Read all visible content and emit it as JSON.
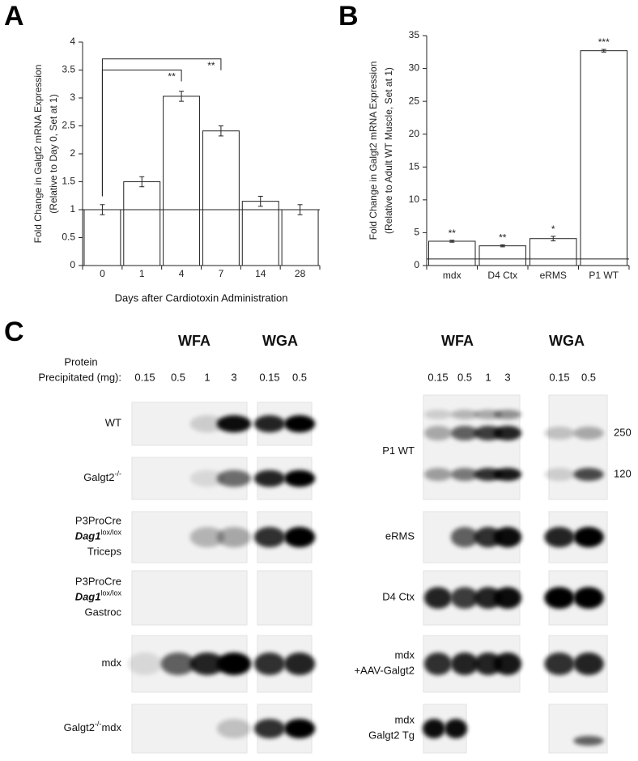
{
  "chart_data": [
    {
      "type": "bar",
      "panel": "A",
      "y_label": [
        "Fold Change in Galgt2 mRNA Expression",
        "(Relative to Day 0, Set at 1)"
      ],
      "x_label": "Days after Cardiotoxin Administration",
      "categories": [
        "0",
        "1",
        "4",
        "7",
        "14",
        "28"
      ],
      "values": [
        1,
        1.5,
        3.03,
        2.41,
        1.15,
        1.0
      ],
      "errors": [
        0.09,
        0.09,
        0.09,
        0.09,
        0.09,
        0.09
      ],
      "ylim": [
        0,
        4
      ],
      "yticks": [
        0,
        0.5,
        1,
        1.5,
        2,
        2.5,
        3,
        3.5,
        4
      ],
      "reference_line": 1,
      "color": "#ffffff",
      "brackets": [
        {
          "label": "**",
          "from": 0,
          "to": 3,
          "y": 3.7
        },
        {
          "label": "**",
          "from": 0,
          "to": 2,
          "y": 3.5
        }
      ]
    },
    {
      "type": "bar",
      "panel": "B",
      "y_label": [
        "Fold Change in Galgt2 mRNA Expression",
        "(Relative to Adult WT Muscle, Set at 1)"
      ],
      "categories": [
        "mdx",
        "D4 Ctx",
        "eRMS",
        "P1 WT"
      ],
      "values": [
        3.7,
        3.0,
        4.1,
        32.7
      ],
      "errors": [
        0.15,
        0.15,
        0.35,
        0.2
      ],
      "significance": [
        "**",
        "**",
        "*",
        "***"
      ],
      "ylim": [
        0,
        35
      ],
      "yticks": [
        0,
        5,
        10,
        15,
        20,
        25,
        30,
        35
      ],
      "reference_line": 1,
      "color": "#ffffff"
    }
  ],
  "panel_c": {
    "panel": "C",
    "left": {
      "headers": [
        "WFA",
        "WGA"
      ],
      "amount_label": [
        "Protein",
        "Precipitated (mg):"
      ],
      "amounts": [
        [
          "0.15",
          "0.5",
          "1",
          "3"
        ],
        [
          "0.15",
          "0.5"
        ]
      ],
      "rows": [
        {
          "lines": [
            [
              {
                "text": "WT"
              }
            ]
          ]
        },
        {
          "lines": [
            [
              {
                "text": "Galgt2"
              },
              {
                "text": "-/-",
                "style": "sup"
              }
            ]
          ]
        },
        {
          "lines": [
            [
              {
                "text": "P3ProCre"
              }
            ],
            [
              {
                "text": "Dag1",
                "style": "italic-bold"
              },
              {
                "text": "lox/lox",
                "style": "sup"
              }
            ],
            [
              {
                "text": "Triceps"
              }
            ]
          ]
        },
        {
          "lines": [
            [
              {
                "text": "P3ProCre"
              }
            ],
            [
              {
                "text": "Dag1",
                "style": "italic-bold"
              },
              {
                "text": "lox/lox",
                "style": "sup"
              }
            ],
            [
              {
                "text": "Gastroc"
              }
            ]
          ]
        },
        {
          "lines": [
            [
              {
                "text": "mdx"
              }
            ]
          ]
        },
        {
          "lines": [
            [
              {
                "text": "Galgt2"
              },
              {
                "text": "-/-",
                "style": "sup"
              },
              {
                "text": "mdx"
              }
            ]
          ]
        }
      ]
    },
    "right": {
      "headers": [
        "WFA",
        "WGA"
      ],
      "amounts": [
        [
          "0.15",
          "0.5",
          "1",
          "3"
        ],
        [
          "0.15",
          "0.5"
        ]
      ],
      "markers": [
        "250",
        "120"
      ],
      "rows": [
        {
          "lines": [
            [
              {
                "text": "P1 WT"
              }
            ]
          ]
        },
        {
          "lines": [
            [
              {
                "text": "eRMS"
              }
            ]
          ]
        },
        {
          "lines": [
            [
              {
                "text": "D4 Ctx"
              }
            ]
          ]
        },
        {
          "lines": [
            [
              {
                "text": "mdx"
              }
            ],
            [
              {
                "text": "+AAV-Galgt2"
              }
            ]
          ]
        },
        {
          "lines": [
            [
              {
                "text": "mdx"
              }
            ],
            [
              {
                "text": "Galgt2 Tg"
              }
            ]
          ]
        }
      ]
    }
  }
}
